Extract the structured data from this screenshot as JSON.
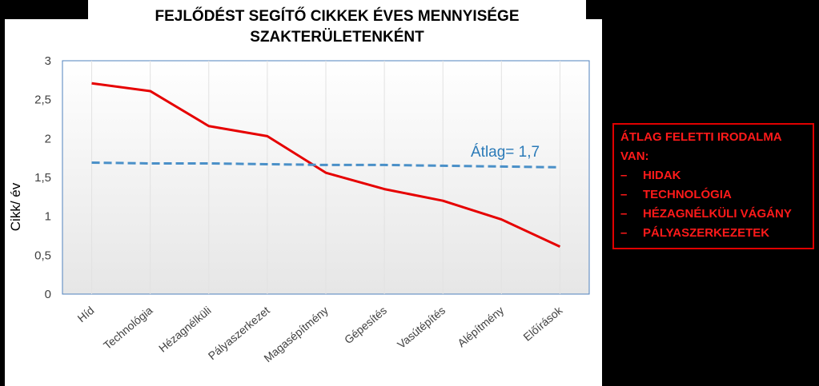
{
  "chart_data": {
    "type": "line",
    "title": "FEJLŐDÉST SEGÍTŐ CIKKEK ÉVES MENNYISÉGE\nSZAKTERÜLETENKÉNT",
    "ylabel": "Cikk/ év",
    "ylim": [
      0,
      3
    ],
    "yticks": [
      "0",
      "0,5",
      "1",
      "1,5",
      "2",
      "2,5",
      "3"
    ],
    "ytick_values": [
      0,
      0.5,
      1,
      1.5,
      2,
      2.5,
      3
    ],
    "categories": [
      "Híd",
      "Technológia",
      "Hézagnélküli",
      "Pályaszerkezet",
      "Magasépítmény",
      "Gépesítés",
      "Vasútépítés",
      "Alépítmény",
      "Előírások"
    ],
    "series": [
      {
        "values": [
          2.71,
          2.61,
          2.16,
          2.03,
          1.56,
          1.35,
          1.2,
          0.96,
          0.61
        ],
        "color": "#e60000",
        "style": "solid"
      },
      {
        "values": [
          1.69,
          1.68,
          1.68,
          1.67,
          1.66,
          1.66,
          1.65,
          1.64,
          1.63
        ],
        "color": "#4a90c8",
        "style": "dashed"
      }
    ],
    "annotation": "Átlag= 1,7",
    "grid": "vertical"
  },
  "note": {
    "heading": "ÁTLAG FELETTI IRODALMA VAN:",
    "items": [
      "HIDAK",
      "TECHNOLÓGIA",
      "HÉZAGNÉLKÜLI VÁGÁNY",
      "PÁLYASZERKEZETEK"
    ],
    "bullet": "–",
    "color": "#ff1a1a"
  }
}
